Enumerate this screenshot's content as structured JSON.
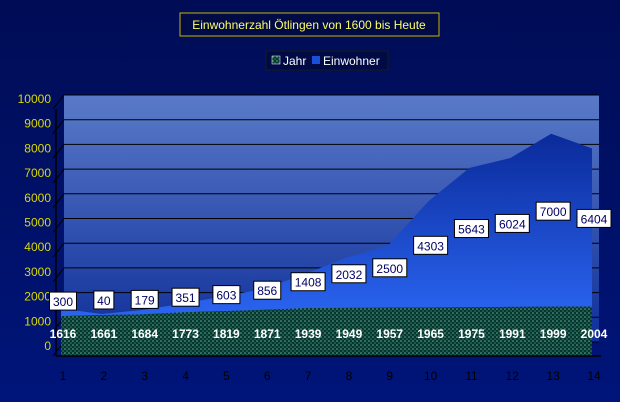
{
  "chart_data": {
    "type": "area",
    "title": "Einwohnerzahl Ötlingen von 1600 bis Heute",
    "categories": [
      "1",
      "2",
      "3",
      "4",
      "5",
      "6",
      "7",
      "8",
      "9",
      "10",
      "11",
      "12",
      "13",
      "14"
    ],
    "ylim": [
      0,
      10000
    ],
    "yticks": [
      0,
      1000,
      2000,
      3000,
      4000,
      5000,
      6000,
      7000,
      8000,
      9000,
      10000
    ],
    "grid": true,
    "legend_position": "top-center",
    "series": [
      {
        "name": "Jahr",
        "color": "#0a5a4a",
        "values": [
          1616,
          1661,
          1684,
          1773,
          1819,
          1871,
          1939,
          1949,
          1957,
          1965,
          1975,
          1991,
          1999,
          2004
        ]
      },
      {
        "name": "Einwohner",
        "color": "#1a4fd8",
        "values": [
          300,
          40,
          179,
          351,
          603,
          856,
          1408,
          2032,
          2500,
          4303,
          5643,
          6024,
          7000,
          6404
        ]
      }
    ],
    "colors": {
      "title_border": "#c8b400",
      "title_text": "#ffff66",
      "axis_text": "#d9d900",
      "background": "#000f5c"
    }
  }
}
